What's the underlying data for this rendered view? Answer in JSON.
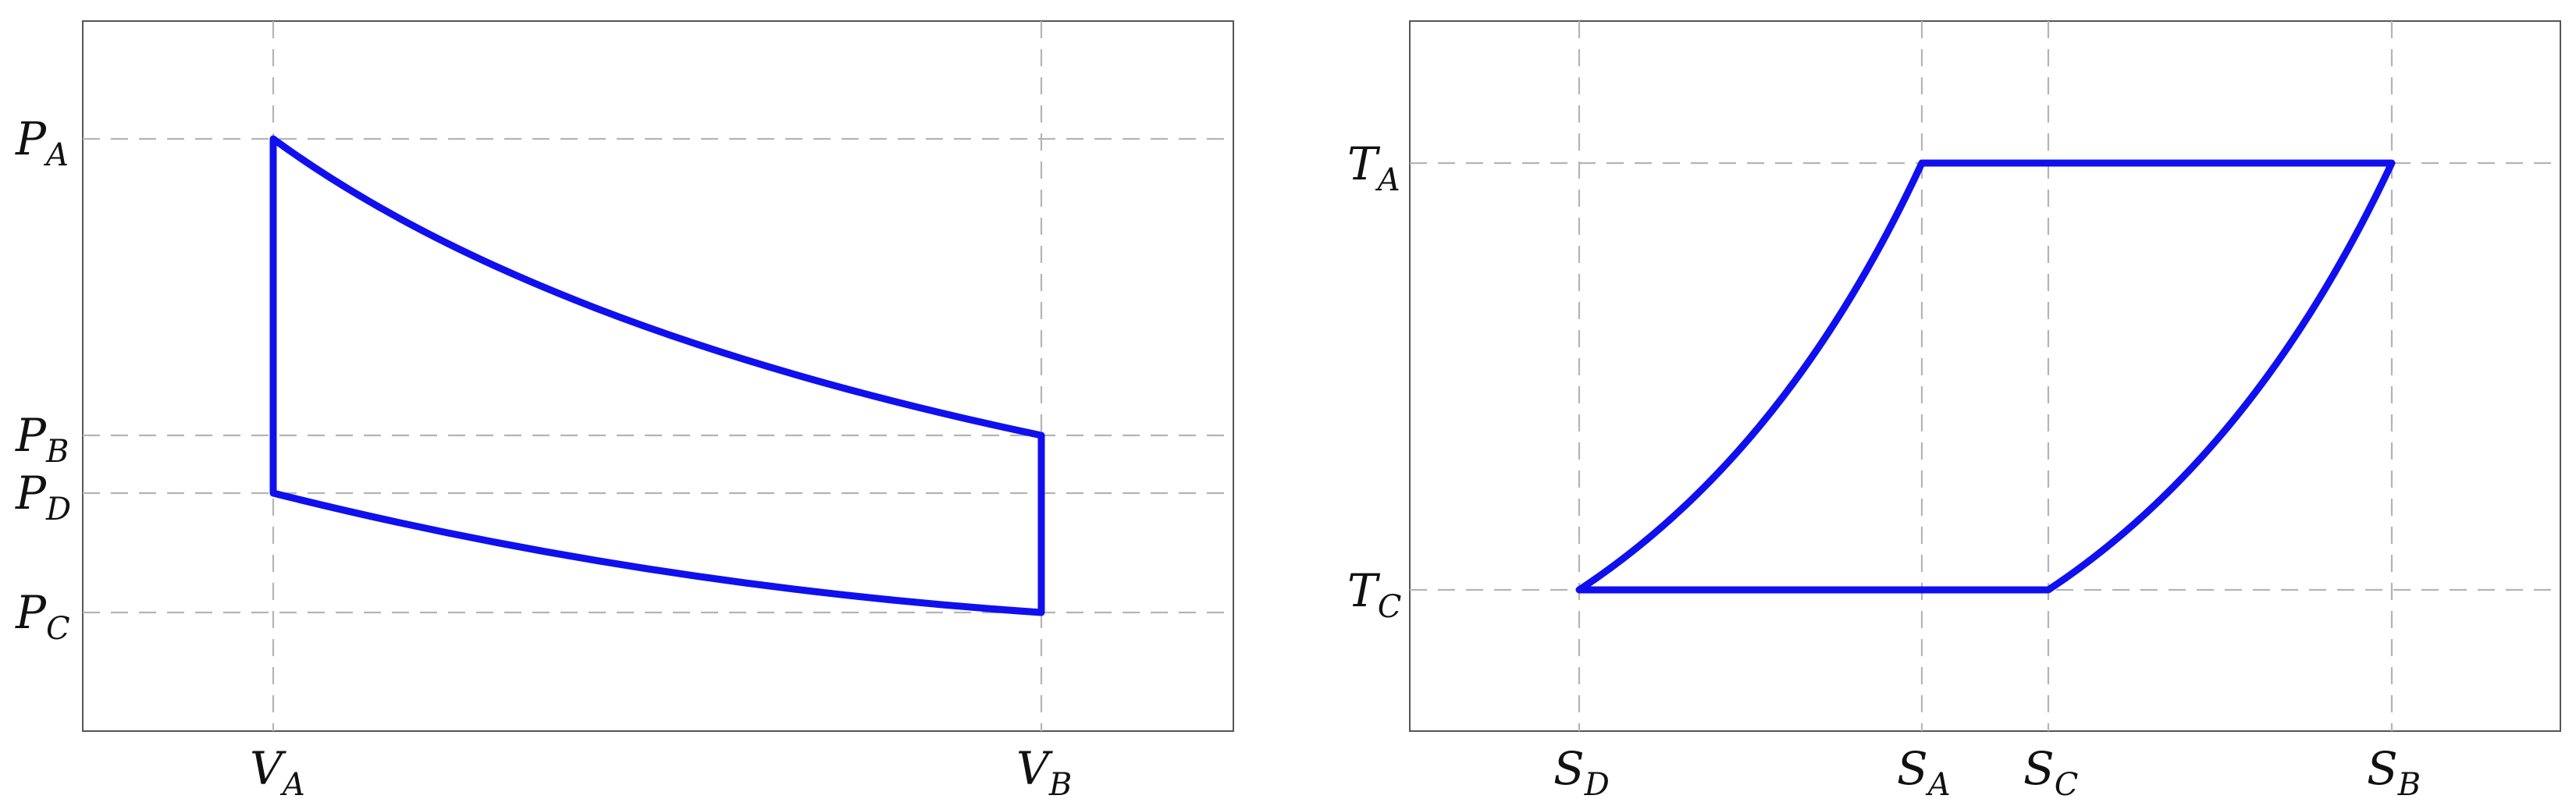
{
  "left_panel": {
    "x_ticks": [
      {
        "main": "V",
        "sub": "A"
      },
      {
        "main": "V",
        "sub": "B"
      }
    ],
    "y_ticks": [
      {
        "main": "P",
        "sub": "A"
      },
      {
        "main": "P",
        "sub": "B"
      },
      {
        "main": "P",
        "sub": "D"
      },
      {
        "main": "P",
        "sub": "C"
      }
    ]
  },
  "right_panel": {
    "x_ticks": [
      {
        "main": "S",
        "sub": "D"
      },
      {
        "main": "S",
        "sub": "A"
      },
      {
        "main": "S",
        "sub": "C"
      },
      {
        "main": "S",
        "sub": "B"
      }
    ],
    "y_ticks": [
      {
        "main": "T",
        "sub": "A"
      },
      {
        "main": "T",
        "sub": "C"
      }
    ]
  },
  "colors": {
    "cycle": "#1010ee",
    "grid": "#b4b4b4",
    "frame": "#555555"
  }
}
